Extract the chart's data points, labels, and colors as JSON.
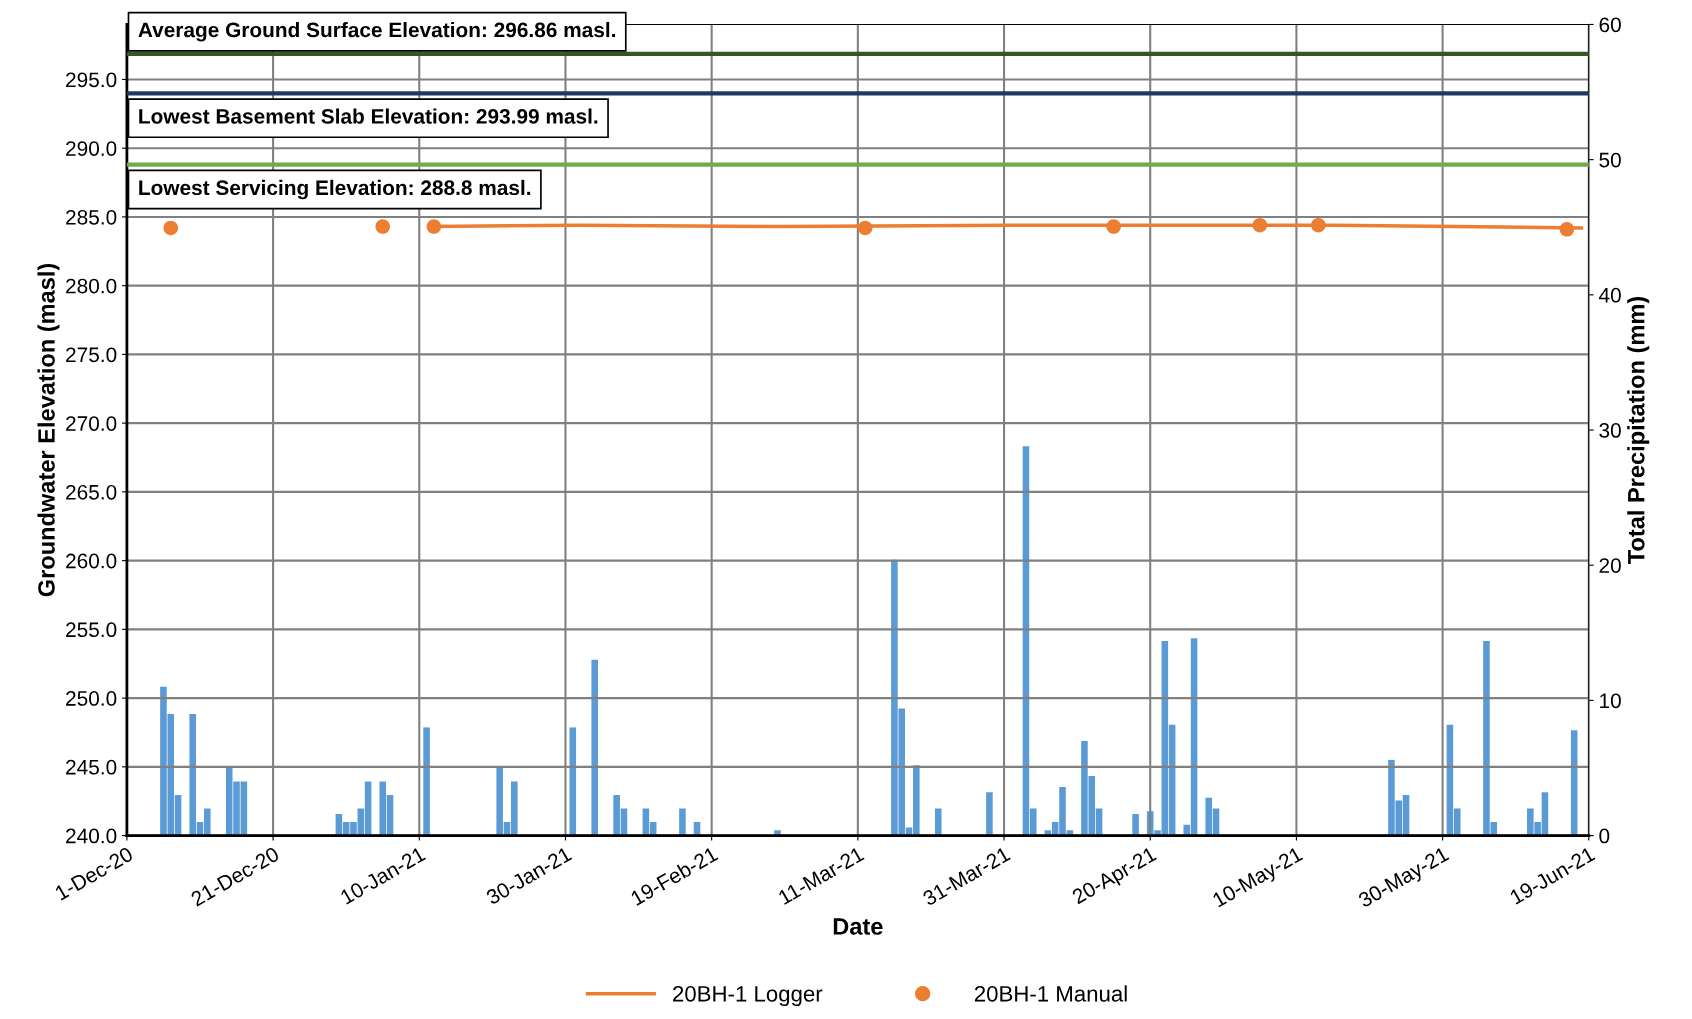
{
  "chart_data": {
    "type": "line",
    "xlabel": "Date",
    "ylabel": "Groundwater Elevation (masl)",
    "y2label": "Total Precipitation (mm)",
    "xlim": [
      "2020-12-01",
      "2021-06-19"
    ],
    "xticks": [
      {
        "value": "2020-12-01",
        "label": "1-Dec-20"
      },
      {
        "value": "2020-12-21",
        "label": "21-Dec-20"
      },
      {
        "value": "2021-01-10",
        "label": "10-Jan-21"
      },
      {
        "value": "2021-01-30",
        "label": "30-Jan-21"
      },
      {
        "value": "2021-02-19",
        "label": "19-Feb-21"
      },
      {
        "value": "2021-03-11",
        "label": "11-Mar-21"
      },
      {
        "value": "2021-03-31",
        "label": "31-Mar-21"
      },
      {
        "value": "2021-04-20",
        "label": "20-Apr-21"
      },
      {
        "value": "2021-05-10",
        "label": "10-May-21"
      },
      {
        "value": "2021-05-30",
        "label": "30-May-21"
      },
      {
        "value": "2021-06-19",
        "label": "19-Jun-21"
      }
    ],
    "ylim": [
      240,
      299
    ],
    "yticks": [
      {
        "value": 240,
        "label": "240.0"
      },
      {
        "value": 245,
        "label": "245.0"
      },
      {
        "value": 250,
        "label": "250.0"
      },
      {
        "value": 255,
        "label": "255.0"
      },
      {
        "value": 260,
        "label": "260.0"
      },
      {
        "value": 265,
        "label": "265.0"
      },
      {
        "value": 270,
        "label": "270.0"
      },
      {
        "value": 275,
        "label": "275.0"
      },
      {
        "value": 280,
        "label": "280.0"
      },
      {
        "value": 285,
        "label": "285.0"
      },
      {
        "value": 290,
        "label": "290.0"
      },
      {
        "value": 295,
        "label": "295.0"
      }
    ],
    "y2lim": [
      0,
      60
    ],
    "y2ticks": [
      0,
      10,
      20,
      30,
      40,
      50,
      60
    ],
    "grid": true,
    "legend": "bottom",
    "ref_lines": [
      {
        "axis": "y",
        "value": 296.86,
        "label": "Average Ground Surface Elevation: 296.86 masl.",
        "color": "#375623"
      },
      {
        "axis": "y",
        "value": 293.99,
        "label": "Lowest Basement Slab Elevation: 293.99 masl.",
        "color": "#1f3864"
      },
      {
        "axis": "y",
        "value": 288.8,
        "label": "Lowest Servicing Elevation: 288.8 masl.",
        "color": "#70ad47"
      }
    ],
    "series": [
      {
        "type": "bar",
        "axis": "y2",
        "color": "#5b9bd5",
        "x": [
          "2020-12-06",
          "2020-12-07",
          "2020-12-08",
          "2020-12-10",
          "2020-12-11",
          "2020-12-12",
          "2020-12-15",
          "2020-12-16",
          "2020-12-17",
          "2020-12-30",
          "2020-12-31",
          "2021-01-01",
          "2021-01-02",
          "2021-01-03",
          "2021-01-05",
          "2021-01-06",
          "2021-01-11",
          "2021-01-21",
          "2021-01-22",
          "2021-01-23",
          "2021-01-31",
          "2021-02-03",
          "2021-02-06",
          "2021-02-07",
          "2021-02-10",
          "2021-02-11",
          "2021-02-15",
          "2021-02-17",
          "2021-02-28",
          "2021-03-16",
          "2021-03-17",
          "2021-03-18",
          "2021-03-19",
          "2021-03-22",
          "2021-03-29",
          "2021-04-03",
          "2021-04-04",
          "2021-04-06",
          "2021-04-07",
          "2021-04-08",
          "2021-04-09",
          "2021-04-11",
          "2021-04-12",
          "2021-04-13",
          "2021-04-18",
          "2021-04-20",
          "2021-04-21",
          "2021-04-22",
          "2021-04-23",
          "2021-04-25",
          "2021-04-26",
          "2021-04-28",
          "2021-04-29",
          "2021-05-23",
          "2021-05-24",
          "2021-05-25",
          "2021-05-31",
          "2021-06-01",
          "2021-06-05",
          "2021-06-06",
          "2021-06-11",
          "2021-06-12",
          "2021-06-13",
          "2021-06-17"
        ],
        "values": [
          11.0,
          9.0,
          3.0,
          9.0,
          1.0,
          2.0,
          5.0,
          4.0,
          4.0,
          1.6,
          1.0,
          1.0,
          2.0,
          4.0,
          4.0,
          3.0,
          8.0,
          5.0,
          1.0,
          4.0,
          8.0,
          13.0,
          3.0,
          2.0,
          2.0,
          1.0,
          2.0,
          1.0,
          0.4,
          20.4,
          9.4,
          0.6,
          5.2,
          2.0,
          3.2,
          28.8,
          2.0,
          0.4,
          1.0,
          3.6,
          0.4,
          7.0,
          4.4,
          2.0,
          1.6,
          1.8,
          0.4,
          14.4,
          8.2,
          0.8,
          14.6,
          2.8,
          2.0,
          5.6,
          2.6,
          3.0,
          8.2,
          2.0,
          14.4,
          1.0,
          2.0,
          1.0,
          3.2,
          7.8
        ]
      },
      {
        "name": "20BH-1 Logger",
        "color": "#ed7d31",
        "marker": "none",
        "x": [
          "2021-01-12",
          "2021-02-01",
          "2021-03-01",
          "2021-04-01",
          "2021-05-01",
          "2021-05-15",
          "2021-06-18"
        ],
        "values": [
          284.3,
          284.4,
          284.3,
          284.4,
          284.4,
          284.4,
          284.2
        ]
      },
      {
        "type": "scatter",
        "name": "20BH-1 Manual",
        "color": "#ed7d31",
        "marker": "circle",
        "x": [
          "2020-12-07",
          "2021-01-05",
          "2021-01-12",
          "2021-03-12",
          "2021-04-15",
          "2021-05-05",
          "2021-05-13",
          "2021-06-16"
        ],
        "values": [
          284.2,
          284.3,
          284.3,
          284.2,
          284.3,
          284.4,
          284.4,
          284.1
        ]
      }
    ]
  }
}
